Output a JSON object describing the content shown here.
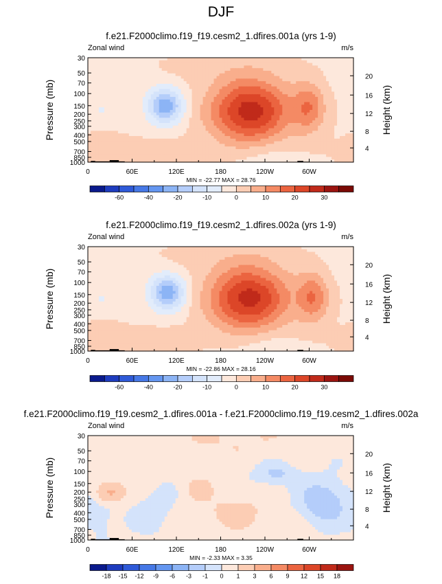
{
  "figure": {
    "title": "DJF"
  },
  "palette": {
    "frame": "#000000",
    "land": "#000000"
  },
  "chart_data": [
    {
      "type": "heatmap",
      "title": "f.e21.F2000climo.f19_f19.cesm2_1.dfires.001a (yrs 1-9)",
      "variable": "Zonal wind",
      "units": "m/s",
      "ylabel": "Pressure (mb)",
      "ylabel_right": "Height (km)",
      "x_ticks": [
        "0",
        "60E",
        "120E",
        "180",
        "120W",
        "60W"
      ],
      "y_ticks": [
        "30",
        "50",
        "70",
        "100",
        "150",
        "200",
        "250",
        "300",
        "400",
        "500",
        "700",
        "850",
        "1000"
      ],
      "y_ticks_right": [
        "20",
        "16",
        "12",
        "8",
        "4"
      ],
      "stats": "MIN = -22.77  MAX =  28.76",
      "min": -22.77,
      "max": 28.76,
      "scale_labels": [
        "-60",
        "-40",
        "-20",
        "-10",
        "0",
        "10",
        "20",
        "30"
      ],
      "levels": [
        -70,
        -60,
        -50,
        -40,
        -30,
        -20,
        -15,
        -10,
        -5,
        0,
        5,
        10,
        15,
        20,
        25,
        30,
        35
      ],
      "colors": [
        "#0a1a8c",
        "#1e3cbe",
        "#2f5ad8",
        "#4678e6",
        "#6496f0",
        "#8cb4f5",
        "#b4cdfa",
        "#d4e3fb",
        "#e2ecfb",
        "#fde8dc",
        "#fccdb4",
        "#f9ae8c",
        "#f48a64",
        "#eb6440",
        "#dc4628",
        "#c02a1a",
        "#9a1410",
        "#7a0a06"
      ],
      "features": [
        {
          "lon": 220,
          "p": 180,
          "amp": 28.8,
          "slon": 38,
          "sz": 0.75
        },
        {
          "lon": 300,
          "p": 160,
          "amp": 14,
          "slon": 15,
          "sz": 0.55
        },
        {
          "lon": 105,
          "p": 150,
          "amp": -22.7,
          "slon": 17,
          "sz": 0.42
        },
        {
          "lon": 100,
          "p": 720,
          "amp": 4,
          "slon": 30,
          "sz": 0.3
        },
        {
          "lon": 150,
          "p": 40,
          "amp": 2,
          "slon": 50,
          "sz": 0.45
        },
        {
          "lon": 240,
          "p": 35,
          "amp": 1.5,
          "slon": 40,
          "sz": 0.4
        },
        {
          "lon": 20,
          "p": 170,
          "amp": -4,
          "slon": 10,
          "sz": 0.3
        },
        {
          "lon": 240,
          "p": 800,
          "amp": -3,
          "slon": 30,
          "sz": 0.3
        },
        {
          "lon": 20,
          "p": 650,
          "amp": 3,
          "slon": 40,
          "sz": 0.4
        }
      ],
      "background": -1
    },
    {
      "type": "heatmap",
      "title": "f.e21.F2000climo.f19_f19.cesm2_1.dfires.002a (yrs 1-9)",
      "variable": "Zonal wind",
      "units": "m/s",
      "ylabel": "Pressure (mb)",
      "ylabel_right": "Height (km)",
      "x_ticks": [
        "0",
        "60E",
        "120E",
        "180",
        "120W",
        "60W"
      ],
      "y_ticks": [
        "30",
        "50",
        "70",
        "100",
        "150",
        "200",
        "250",
        "300",
        "400",
        "500",
        "700",
        "850",
        "1000"
      ],
      "y_ticks_right": [
        "20",
        "16",
        "12",
        "8",
        "4"
      ],
      "stats": "MIN = -22.86  MAX =  28.16",
      "min": -22.86,
      "max": 28.16,
      "scale_labels": [
        "-60",
        "-40",
        "-20",
        "-10",
        "0",
        "10",
        "20",
        "30"
      ],
      "levels": [
        -70,
        -60,
        -50,
        -40,
        -30,
        -20,
        -15,
        -10,
        -5,
        0,
        5,
        10,
        15,
        20,
        25,
        30,
        35
      ],
      "colors": [
        "#0a1a8c",
        "#1e3cbe",
        "#2f5ad8",
        "#4678e6",
        "#6496f0",
        "#8cb4f5",
        "#b4cdfa",
        "#d4e3fb",
        "#e2ecfb",
        "#fde8dc",
        "#fccdb4",
        "#f9ae8c",
        "#f48a64",
        "#eb6440",
        "#dc4628",
        "#c02a1a",
        "#9a1410",
        "#7a0a06"
      ],
      "features": [
        {
          "lon": 218,
          "p": 170,
          "amp": 28.2,
          "slon": 38,
          "sz": 0.75
        },
        {
          "lon": 305,
          "p": 165,
          "amp": 15,
          "slon": 15,
          "sz": 0.55
        },
        {
          "lon": 108,
          "p": 140,
          "amp": -22.8,
          "slon": 17,
          "sz": 0.42
        },
        {
          "lon": 100,
          "p": 720,
          "amp": 4,
          "slon": 30,
          "sz": 0.3
        },
        {
          "lon": 150,
          "p": 40,
          "amp": 2,
          "slon": 50,
          "sz": 0.45
        },
        {
          "lon": 240,
          "p": 35,
          "amp": 1.5,
          "slon": 40,
          "sz": 0.4
        },
        {
          "lon": 20,
          "p": 170,
          "amp": -4,
          "slon": 10,
          "sz": 0.3
        },
        {
          "lon": 240,
          "p": 800,
          "amp": -3,
          "slon": 30,
          "sz": 0.3
        },
        {
          "lon": 20,
          "p": 650,
          "amp": 3,
          "slon": 40,
          "sz": 0.4
        }
      ],
      "background": -1
    },
    {
      "type": "heatmap",
      "title": "f.e21.F2000climo.f19_f19.cesm2_1.dfires.001a - f.e21.F2000climo.f19_f19.cesm2_1.dfires.002a",
      "variable": "Zonal wind",
      "units": "m/s",
      "ylabel": "Pressure (mb)",
      "ylabel_right": "Height (km)",
      "x_ticks": [
        "0",
        "60E",
        "120E",
        "180",
        "120W",
        "60W"
      ],
      "y_ticks": [
        "30",
        "50",
        "70",
        "100",
        "150",
        "200",
        "250",
        "300",
        "400",
        "500",
        "700",
        "850",
        "1000"
      ],
      "y_ticks_right": [
        "20",
        "16",
        "12",
        "8",
        "4"
      ],
      "stats": "MIN = -2.33  MAX =  3.35",
      "min": -2.33,
      "max": 3.35,
      "scale_labels": [
        "-18",
        "-15",
        "-12",
        "-9",
        "-6",
        "-3",
        "-1",
        "0",
        "1",
        "3",
        "6",
        "9",
        "12",
        "15",
        "18"
      ],
      "levels": [
        -18,
        -15,
        -12,
        -9,
        -6,
        -3,
        -1,
        0,
        1,
        3,
        6,
        9,
        12,
        15,
        18
      ],
      "colors": [
        "#0a1a8c",
        "#1e3cbe",
        "#2f5ad8",
        "#4678e6",
        "#6496f0",
        "#8cb4f5",
        "#b4cdfa",
        "#d4e3fb",
        "#fde8dc",
        "#fccdb4",
        "#f9ae8c",
        "#f48a64",
        "#eb6440",
        "#dc4628",
        "#c02a1a",
        "#9a1410"
      ],
      "features": [
        {
          "lon": 320,
          "p": 280,
          "amp": -2.33,
          "slon": 22,
          "sz": 0.5
        },
        {
          "lon": 255,
          "p": 110,
          "amp": -1.5,
          "slon": 20,
          "sz": 0.25
        },
        {
          "lon": 30,
          "p": 200,
          "amp": 3.35,
          "slon": 12,
          "sz": 0.22
        },
        {
          "lon": 150,
          "p": 180,
          "amp": 1.3,
          "slon": 12,
          "sz": 0.25
        },
        {
          "lon": 200,
          "p": 400,
          "amp": 1.2,
          "slon": 30,
          "sz": 0.4
        },
        {
          "lon": 90,
          "p": 400,
          "amp": -0.8,
          "slon": 20,
          "sz": 0.5
        },
        {
          "lon": 180,
          "p": 35,
          "amp": 0.7,
          "slon": 100,
          "sz": 0.4
        },
        {
          "lon": 20,
          "p": 500,
          "amp": -0.7,
          "slon": 15,
          "sz": 0.5
        }
      ],
      "background": 0.3
    }
  ]
}
